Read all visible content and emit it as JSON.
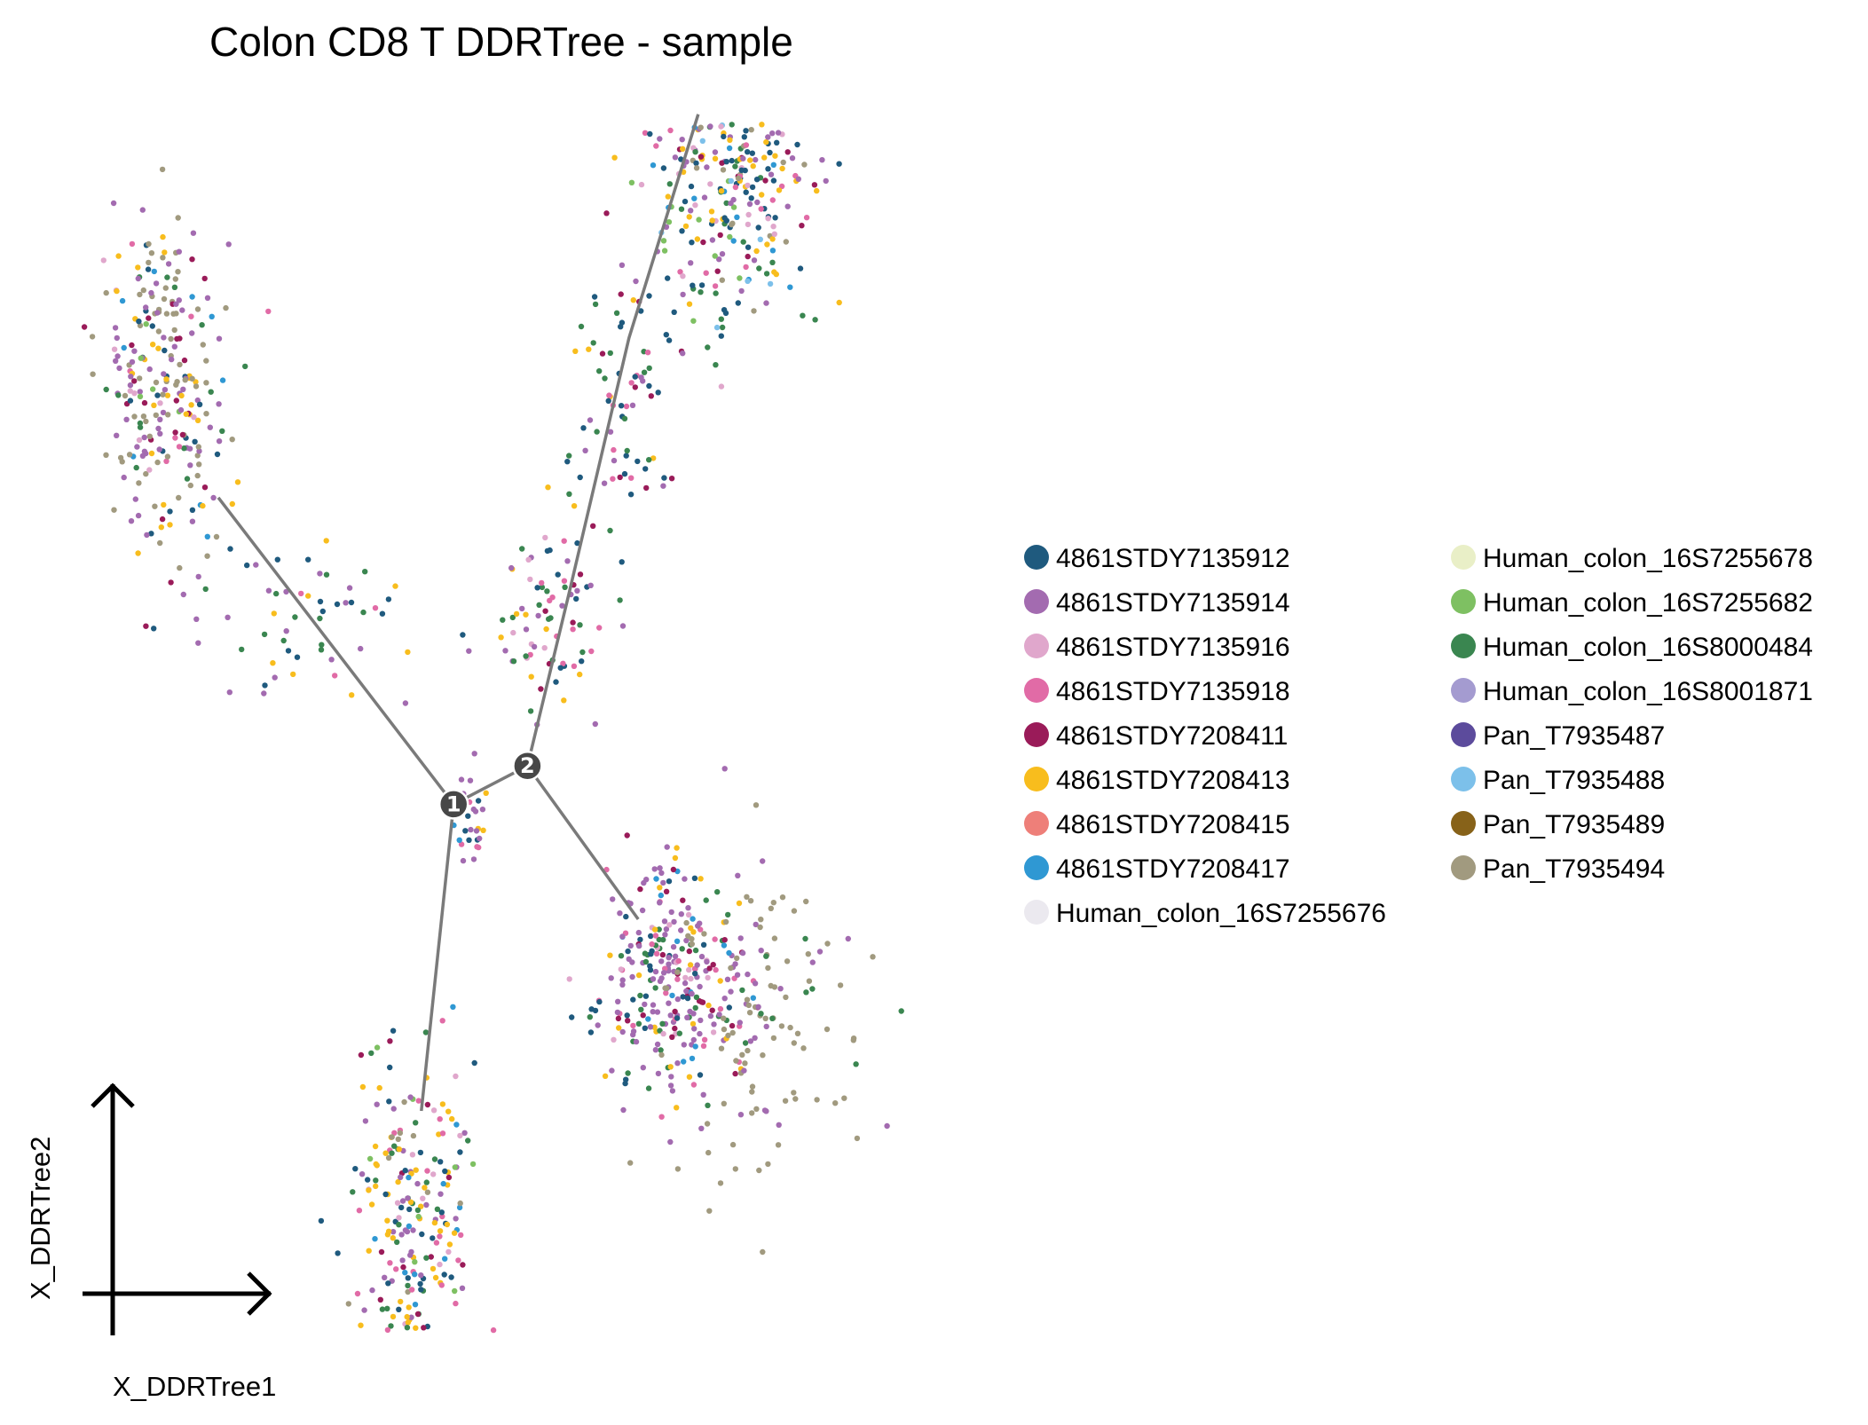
{
  "chart_data": {
    "type": "scatter",
    "title": "Colon CD8 T DDRTree - sample",
    "xlabel": "X_DDRTree1",
    "ylabel": "X_DDRTree2",
    "legend_placement": "right",
    "grid": false,
    "xlim": [
      -10,
      10
    ],
    "ylim": [
      -10,
      10
    ],
    "series": [
      {
        "name": "4861STDY7135912",
        "color": "#1f5a7e"
      },
      {
        "name": "4861STDY7135914",
        "color": "#a36bb0"
      },
      {
        "name": "4861STDY7135916",
        "color": "#e0a7cc"
      },
      {
        "name": "4861STDY7135918",
        "color": "#e16ba6"
      },
      {
        "name": "4861STDY7208411",
        "color": "#9a1b59"
      },
      {
        "name": "4861STDY7208413",
        "color": "#f8bd1d"
      },
      {
        "name": "4861STDY7208415",
        "color": "#ee7f79"
      },
      {
        "name": "4861STDY7208417",
        "color": "#2f98d3"
      },
      {
        "name": "Human_colon_16S7255676",
        "color": "#ebe9ef"
      },
      {
        "name": "Human_colon_16S7255678",
        "color": "#e9efc7"
      },
      {
        "name": "Human_colon_16S7255682",
        "color": "#7ec062"
      },
      {
        "name": "Human_colon_16S8000484",
        "color": "#3a8650"
      },
      {
        "name": "Human_colon_16S8001871",
        "color": "#a49bd0"
      },
      {
        "name": "Pan_T7935487",
        "color": "#5c4b9c"
      },
      {
        "name": "Pan_T7935488",
        "color": "#7cc0ea"
      },
      {
        "name": "Pan_T7935489",
        "color": "#876219"
      },
      {
        "name": "Pan_T7935494",
        "color": "#a19a7f"
      }
    ],
    "tree": {
      "branch_points": [
        {
          "label": "1",
          "x": -1.9,
          "y": -1.2
        },
        {
          "label": "2",
          "x": -0.3,
          "y": -0.6
        }
      ],
      "segments": [
        {
          "points": [
            [
              -1.9,
              -1.2
            ],
            [
              -7.0,
              3.6
            ]
          ]
        },
        {
          "points": [
            [
              -1.9,
              -1.2
            ],
            [
              -2.6,
              -6.0
            ]
          ]
        },
        {
          "points": [
            [
              -1.9,
              -1.2
            ],
            [
              -0.3,
              -0.6
            ]
          ]
        },
        {
          "points": [
            [
              -0.3,
              -0.6
            ],
            [
              0.6,
              2.1
            ],
            [
              1.9,
              6.1
            ],
            [
              3.4,
              9.6
            ]
          ]
        },
        {
          "points": [
            [
              -0.3,
              -0.6
            ],
            [
              2.1,
              -3.0
            ]
          ]
        }
      ]
    },
    "clusters": [
      {
        "region": "upper-left",
        "cx": -8.2,
        "cy": 5.2,
        "sx": 0.7,
        "sy": 1.4,
        "n": 260,
        "weights": {
          "4861STDY7135914": 4,
          "Pan_T7935494": 4,
          "4861STDY7208413": 1.5,
          "4861STDY7135912": 1,
          "Human_colon_16S8000484": 1,
          "4861STDY7208411": 1,
          "4861STDY7135918": 1,
          "4861STDY7208417": 0.6,
          "Human_colon_16S7255682": 0.6,
          "4861STDY7135916": 0.8
        }
      },
      {
        "region": "left-branch",
        "cx": -4.8,
        "cy": 1.8,
        "sx": 1.2,
        "sy": 0.6,
        "n": 50,
        "weights": {
          "4861STDY7135914": 2,
          "4861STDY7135912": 2,
          "Human_colon_16S8000484": 2,
          "4861STDY7208413": 1,
          "4861STDY7135918": 1
        }
      },
      {
        "region": "bottom",
        "cx": -2.8,
        "cy": -8.0,
        "sx": 0.6,
        "sy": 1.6,
        "n": 260,
        "weights": {
          "4861STDY7208413": 3,
          "4861STDY7135912": 2.5,
          "Human_colon_16S8000484": 2.5,
          "4861STDY7135914": 2,
          "4861STDY7135918": 1.5,
          "4861STDY7208411": 1.2,
          "4861STDY7208417": 1,
          "Pan_T7935494": 1,
          "Human_colon_16S7255682": 0.8,
          "4861STDY7135916": 0.8
        }
      },
      {
        "region": "center",
        "cx": -1.5,
        "cy": -1.4,
        "sx": 0.15,
        "sy": 0.35,
        "n": 28,
        "weights": {
          "4861STDY7135914": 2,
          "4861STDY7135912": 2,
          "4861STDY7208413": 1,
          "4861STDY7208417": 1,
          "4861STDY7135918": 1
        }
      },
      {
        "region": "right-lower",
        "cx": 2.9,
        "cy": -4.0,
        "sx": 0.8,
        "sy": 0.9,
        "n": 300,
        "weights": {
          "4861STDY7135914": 5,
          "4861STDY7135912": 1.5,
          "Human_colon_16S8000484": 1.5,
          "4861STDY7135918": 1.5,
          "4861STDY7208411": 1,
          "4861STDY7208413": 1,
          "4861STDY7208417": 0.7,
          "4861STDY7135916": 1.2
        }
      },
      {
        "region": "right-lower-tail",
        "cx": 4.9,
        "cy": -4.6,
        "sx": 1.2,
        "sy": 1.3,
        "n": 110,
        "weights": {
          "Pan_T7935494": 6,
          "4861STDY7135914": 1,
          "Human_colon_16S8000484": 0.5
        }
      },
      {
        "region": "mid-branch",
        "cx": 0.2,
        "cy": 1.6,
        "sx": 0.6,
        "sy": 0.8,
        "n": 80,
        "weights": {
          "4861STDY7135912": 2,
          "Human_colon_16S8000484": 2,
          "4861STDY7135914": 1.5,
          "4861STDY7208413": 1,
          "4861STDY7135918": 1,
          "4861STDY7135916": 1,
          "4861STDY7208411": 0.8
        }
      },
      {
        "region": "upper-branch",
        "cx": 1.8,
        "cy": 5.0,
        "sx": 0.6,
        "sy": 1.0,
        "n": 70,
        "weights": {
          "4861STDY7135912": 2,
          "Human_colon_16S8000484": 2,
          "4861STDY7135914": 1.5,
          "4861STDY7208411": 1,
          "4861STDY7208413": 1,
          "4861STDY7135918": 0.8
        }
      },
      {
        "region": "top-right",
        "cx": 4.1,
        "cy": 8.6,
        "sx": 1.0,
        "sy": 1.2,
        "n": 320,
        "weights": {
          "4861STDY7135912": 3,
          "4861STDY7135914": 3,
          "4861STDY7208413": 2.5,
          "Human_colon_16S8000484": 2.5,
          "4861STDY7208411": 2,
          "4861STDY7135918": 1.5,
          "Pan_T7935494": 1.2,
          "Human_colon_16S7255682": 1,
          "4861STDY7208417": 0.8,
          "Pan_T7935488": 0.6,
          "4861STDY7135916": 1
        }
      }
    ]
  }
}
